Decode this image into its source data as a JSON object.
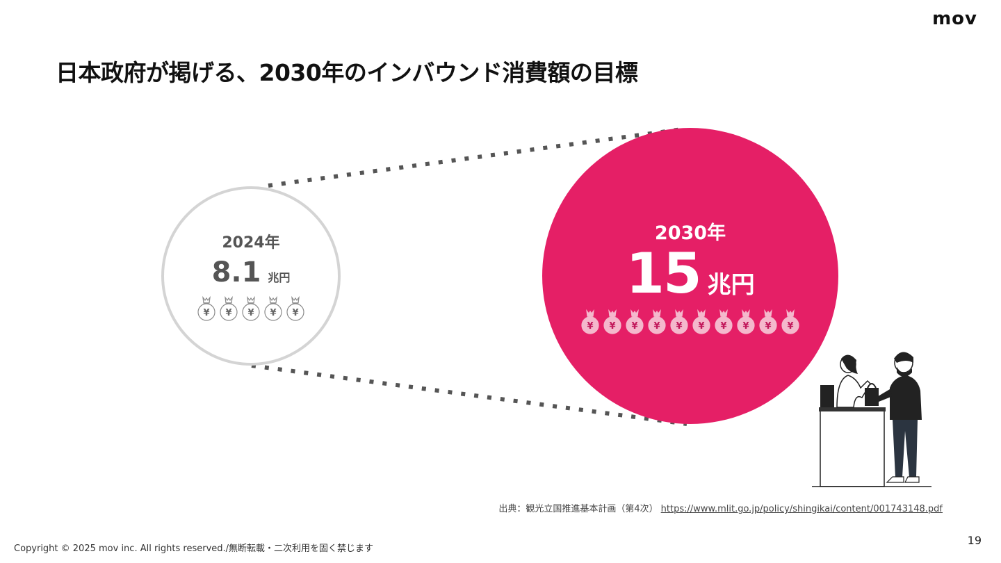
{
  "brand": {
    "logo": "mov"
  },
  "slide": {
    "title": "日本政府が掲げる、2030年のインバウンド消費額の目標",
    "page_number": "19"
  },
  "comparison": {
    "current": {
      "year_label": "2024年",
      "amount": "8.1",
      "unit": "兆円",
      "bag_count": 5,
      "bag_symbol": "¥"
    },
    "target": {
      "year_label": "2030年",
      "amount": "15",
      "unit": "兆円",
      "bag_count": 10,
      "bag_symbol": "¥"
    }
  },
  "source": {
    "label": "出典：観光立国推進基本計画（第4次）",
    "link_text": "https://www.mlit.go.jp/policy/shingikai/content/001743148.pdf"
  },
  "footer": {
    "copyright": "Copyright © 2025 mov inc. All rights reserved./無断転載・二次利用を固く禁じます"
  },
  "colors": {
    "accent": "#e51f66",
    "circle_border": "#d4d4d4",
    "muted_text": "#555555",
    "bag_muted": "#ffffff",
    "bag_accent": "#f4b8cc",
    "connector": "#555555"
  },
  "icons": {
    "money_bag": "money-bag-icon"
  }
}
